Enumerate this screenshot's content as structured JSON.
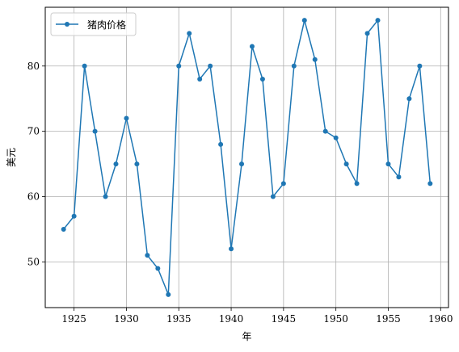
{
  "chart_data": {
    "type": "line",
    "title": "",
    "xlabel": "年",
    "ylabel": "美元",
    "xlim": [
      1922.25,
      1960.75
    ],
    "ylim": [
      43,
      89
    ],
    "xticks": [
      1925,
      1930,
      1935,
      1940,
      1945,
      1950,
      1955,
      1960
    ],
    "yticks": [
      50,
      60,
      70,
      80
    ],
    "grid": true,
    "legend_position": "upper-left",
    "series": [
      {
        "name": "猪肉价格",
        "color": "#1f77b4",
        "marker": "circle",
        "x": [
          1924,
          1925,
          1926,
          1927,
          1928,
          1929,
          1930,
          1931,
          1932,
          1933,
          1934,
          1935,
          1936,
          1937,
          1938,
          1939,
          1940,
          1941,
          1942,
          1943,
          1944,
          1945,
          1946,
          1947,
          1948,
          1949,
          1950,
          1951,
          1952,
          1953,
          1954,
          1955,
          1956,
          1957,
          1958,
          1959
        ],
        "y": [
          55,
          57,
          80,
          70,
          60,
          65,
          72,
          65,
          51,
          49,
          45,
          80,
          85,
          78,
          80,
          68,
          52,
          65,
          83,
          78,
          60,
          62,
          80,
          87,
          81,
          70,
          69,
          65,
          62,
          85,
          87,
          65,
          63,
          75,
          80,
          62
        ]
      }
    ]
  }
}
